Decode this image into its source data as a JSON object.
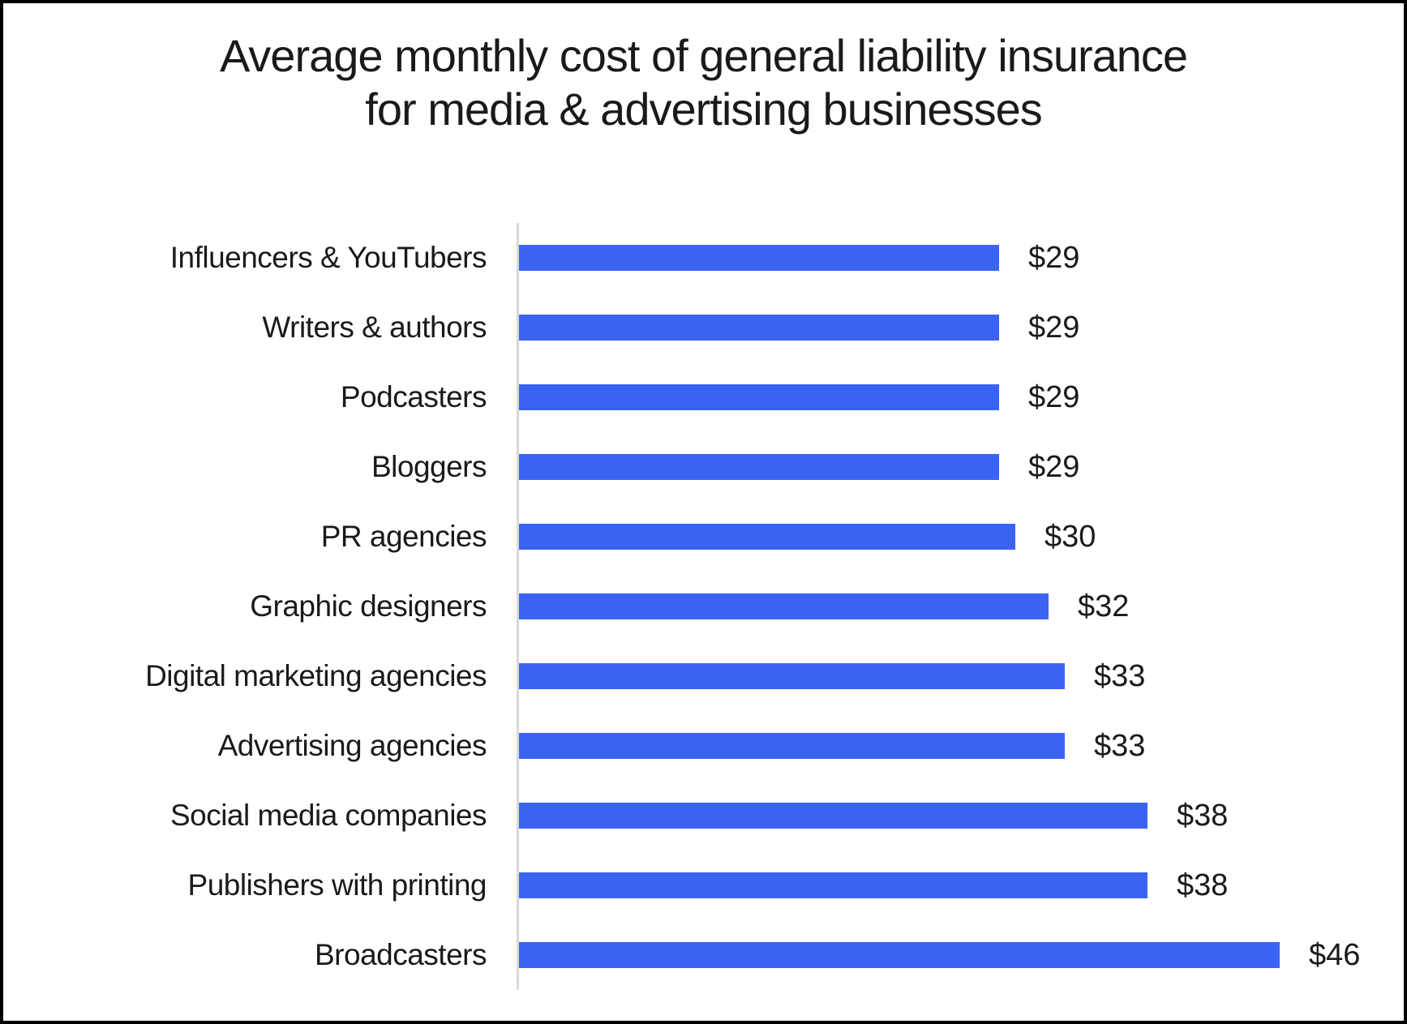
{
  "chart_data": {
    "type": "bar",
    "orientation": "horizontal",
    "title": "Average monthly cost of general liability insurance for media & advertising businesses",
    "title_lines": [
      "Average monthly cost of general liability insurance",
      "for media & advertising businesses"
    ],
    "categories": [
      "Influencers & YouTubers",
      "Writers & authors",
      "Podcasters",
      "Bloggers",
      "PR agencies",
      "Graphic designers",
      "Digital marketing agencies",
      "Advertising agencies",
      "Social media companies",
      "Publishers with printing",
      "Broadcasters"
    ],
    "values": [
      29,
      29,
      29,
      29,
      30,
      32,
      33,
      33,
      38,
      38,
      46
    ],
    "value_labels": [
      "$29",
      "$29",
      "$29",
      "$29",
      "$30",
      "$32",
      "$33",
      "$33",
      "$38",
      "$38",
      "$46"
    ],
    "value_prefix": "$",
    "xlabel": "",
    "ylabel": "",
    "xlim": [
      0,
      50
    ],
    "grid": false,
    "legend": false,
    "colors": {
      "bar": "#3b63f2",
      "axis": "#d9d9d9",
      "text": "#1a1a1a",
      "background": "#ffffff",
      "border": "#000000"
    }
  }
}
